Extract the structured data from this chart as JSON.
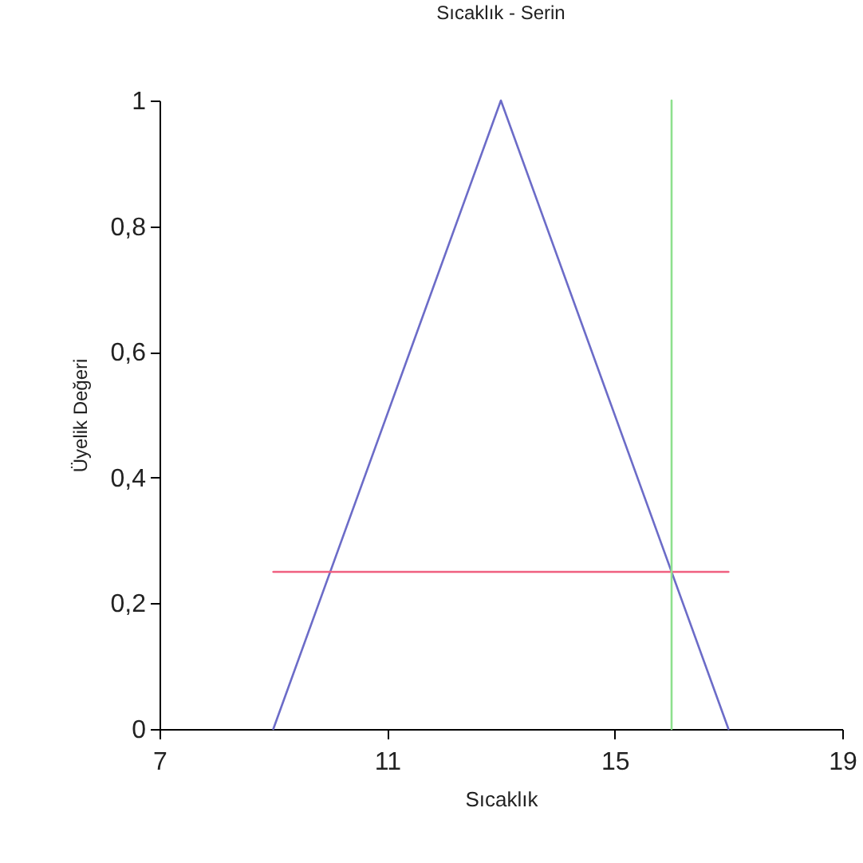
{
  "chart_data": {
    "type": "line",
    "title": "Sıcaklık - Serin",
    "xlabel": "Sıcaklık",
    "ylabel": "Üyelik Değeri",
    "xlim": [
      7,
      19
    ],
    "xticks": [
      7,
      11,
      15,
      19
    ],
    "ylim": [
      0,
      1
    ],
    "yticks": [
      {
        "value": 0,
        "label": "0"
      },
      {
        "value": 0.2,
        "label": "0,2"
      },
      {
        "value": 0.4,
        "label": "0,4"
      },
      {
        "value": 0.6,
        "label": "0,6"
      },
      {
        "value": 0.8,
        "label": "0,8"
      },
      {
        "value": 1,
        "label": "1"
      }
    ],
    "grid": false,
    "marker": "none",
    "line_style": "solid",
    "series": [
      {
        "color": "#6c6cc8",
        "x": [
          9,
          13,
          17
        ],
        "values": [
          0,
          1,
          0
        ]
      },
      {
        "color": "#f06080",
        "x": [
          9,
          17
        ],
        "values": [
          0.25,
          0.25
        ]
      },
      {
        "color": "#8ee08e",
        "x": [
          16,
          16
        ],
        "values": [
          0,
          1
        ]
      }
    ]
  }
}
